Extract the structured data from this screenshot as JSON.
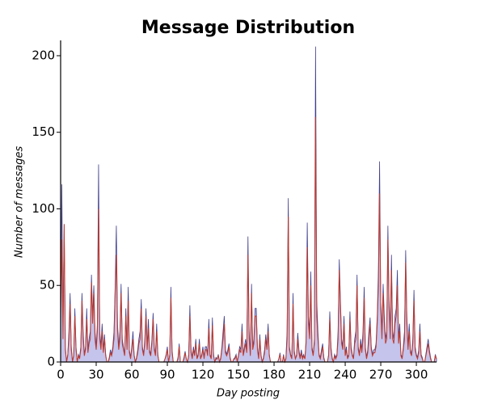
{
  "chart_data": {
    "type": "area",
    "title": "Message Distribution",
    "xlabel": "Day posting",
    "ylabel": "Number of messages",
    "x": [
      0,
      1,
      2,
      3,
      4,
      5,
      6,
      7,
      8,
      9,
      10,
      11,
      12,
      13,
      14,
      15,
      16,
      17,
      18,
      19,
      20,
      21,
      22,
      23,
      24,
      25,
      26,
      27,
      28,
      29,
      30,
      31,
      32,
      33,
      34,
      35,
      36,
      37,
      38,
      39,
      40,
      41,
      42,
      43,
      44,
      45,
      46,
      47,
      48,
      49,
      50,
      51,
      52,
      53,
      54,
      55,
      56,
      57,
      58,
      59,
      60,
      61,
      62,
      63,
      64,
      65,
      66,
      67,
      68,
      69,
      70,
      71,
      72,
      73,
      74,
      75,
      76,
      77,
      78,
      79,
      80,
      81,
      82,
      83,
      84,
      85,
      86,
      87,
      88,
      89,
      90,
      91,
      92,
      93,
      94,
      95,
      96,
      97,
      98,
      99,
      100,
      101,
      102,
      103,
      104,
      105,
      106,
      107,
      108,
      109,
      110,
      111,
      112,
      113,
      114,
      115,
      116,
      117,
      118,
      119,
      120,
      121,
      122,
      123,
      124,
      125,
      126,
      127,
      128,
      129,
      130,
      131,
      132,
      133,
      134,
      135,
      136,
      137,
      138,
      139,
      140,
      141,
      142,
      143,
      144,
      145,
      146,
      147,
      148,
      149,
      150,
      151,
      152,
      153,
      154,
      155,
      156,
      157,
      158,
      159,
      160,
      161,
      162,
      163,
      164,
      165,
      166,
      167,
      168,
      169,
      170,
      171,
      172,
      173,
      174,
      175,
      176,
      177,
      178,
      179,
      180,
      181,
      182,
      183,
      184,
      185,
      186,
      187,
      188,
      189,
      190,
      191,
      192,
      193,
      194,
      195,
      196,
      197,
      198,
      199,
      200,
      201,
      202,
      203,
      204,
      205,
      206,
      207,
      208,
      209,
      210,
      211,
      212,
      213,
      214,
      215,
      216,
      217,
      218,
      219,
      220,
      221,
      222,
      223,
      224,
      225,
      226,
      227,
      228,
      229,
      230,
      231,
      232,
      233,
      234,
      235,
      236,
      237,
      238,
      239,
      240,
      241,
      242,
      243,
      244,
      245,
      246,
      247,
      248,
      249,
      250,
      251,
      252,
      253,
      254,
      255,
      256,
      257,
      258,
      259,
      260,
      261,
      262,
      263,
      264,
      265,
      266,
      267,
      268,
      269,
      270,
      271,
      272,
      273,
      274,
      275,
      276,
      277,
      278,
      279,
      280,
      281,
      282,
      283,
      284,
      285,
      286,
      287,
      288,
      289,
      290,
      291,
      292,
      293,
      294,
      295,
      296,
      297,
      298,
      299,
      300,
      301,
      302,
      303,
      304,
      305,
      306,
      307,
      308,
      309,
      310,
      311,
      312,
      313,
      314,
      315,
      316,
      317
    ],
    "series": [
      {
        "color": "#3f3f8f",
        "fill": "#c4c4ec",
        "values": [
          30,
          116,
          20,
          90,
          10,
          0,
          5,
          20,
          45,
          10,
          0,
          5,
          35,
          10,
          0,
          5,
          3,
          10,
          45,
          20,
          5,
          10,
          35,
          8,
          15,
          20,
          57,
          30,
          50,
          20,
          10,
          25,
          129,
          20,
          10,
          25,
          8,
          18,
          5,
          0,
          0,
          3,
          8,
          5,
          10,
          20,
          50,
          89,
          25,
          10,
          20,
          51,
          15,
          10,
          5,
          35,
          10,
          49,
          8,
          3,
          10,
          20,
          5,
          0,
          3,
          8,
          15,
          20,
          41,
          10,
          5,
          15,
          35,
          10,
          28,
          8,
          5,
          15,
          32,
          10,
          5,
          25,
          5,
          0,
          0,
          0,
          0,
          0,
          2,
          5,
          10,
          0,
          5,
          49,
          8,
          0,
          0,
          0,
          0,
          3,
          12,
          0,
          0,
          0,
          3,
          7,
          2,
          0,
          5,
          37,
          8,
          3,
          10,
          5,
          15,
          3,
          5,
          15,
          2,
          5,
          10,
          3,
          10,
          10,
          5,
          28,
          5,
          3,
          29,
          5,
          0,
          3,
          2,
          5,
          0,
          3,
          10,
          20,
          30,
          8,
          5,
          8,
          12,
          3,
          0,
          0,
          2,
          3,
          5,
          0,
          5,
          10,
          8,
          25,
          5,
          10,
          15,
          8,
          82,
          20,
          5,
          51,
          10,
          15,
          35,
          35,
          10,
          3,
          18,
          5,
          0,
          3,
          8,
          18,
          10,
          25,
          5,
          0,
          0,
          0,
          0,
          0,
          0,
          0,
          2,
          6,
          0,
          0,
          5,
          0,
          3,
          20,
          107,
          10,
          5,
          3,
          45,
          8,
          2,
          5,
          19,
          8,
          3,
          8,
          3,
          5,
          2,
          15,
          91,
          30,
          20,
          59,
          10,
          5,
          15,
          206,
          40,
          20,
          5,
          3,
          8,
          12,
          3,
          0,
          0,
          0,
          5,
          33,
          10,
          3,
          0,
          5,
          3,
          5,
          20,
          67,
          40,
          15,
          10,
          30,
          5,
          10,
          3,
          5,
          33,
          10,
          5,
          3,
          15,
          20,
          57,
          10,
          5,
          15,
          8,
          20,
          49,
          10,
          3,
          8,
          20,
          29,
          10,
          5,
          8,
          8,
          12,
          30,
          60,
          131,
          40,
          20,
          51,
          30,
          15,
          20,
          89,
          40,
          20,
          70,
          20,
          15,
          30,
          35,
          60,
          15,
          25,
          5,
          3,
          10,
          20,
          73,
          30,
          10,
          25,
          8,
          5,
          15,
          47,
          10,
          5,
          3,
          8,
          25,
          5,
          3,
          0,
          0,
          5,
          10,
          15,
          8,
          3,
          0,
          0,
          0,
          5,
          2
        ]
      },
      {
        "color": "#c0392b",
        "values": [
          25,
          80,
          15,
          90,
          8,
          0,
          4,
          15,
          38,
          8,
          0,
          4,
          30,
          8,
          0,
          4,
          2,
          8,
          40,
          15,
          4,
          8,
          28,
          6,
          12,
          15,
          52,
          25,
          45,
          15,
          8,
          20,
          100,
          15,
          8,
          20,
          6,
          15,
          4,
          0,
          0,
          2,
          6,
          4,
          8,
          15,
          45,
          70,
          20,
          8,
          15,
          45,
          12,
          8,
          4,
          30,
          8,
          40,
          6,
          2,
          8,
          15,
          4,
          0,
          2,
          6,
          12,
          15,
          35,
          8,
          4,
          12,
          30,
          8,
          22,
          6,
          4,
          12,
          28,
          8,
          4,
          20,
          4,
          0,
          0,
          0,
          0,
          0,
          2,
          4,
          8,
          0,
          4,
          42,
          6,
          0,
          0,
          0,
          0,
          2,
          10,
          0,
          0,
          0,
          2,
          6,
          2,
          0,
          4,
          30,
          6,
          2,
          8,
          4,
          12,
          2,
          4,
          12,
          2,
          4,
          8,
          2,
          8,
          8,
          4,
          22,
          4,
          2,
          24,
          4,
          0,
          2,
          2,
          4,
          0,
          2,
          8,
          15,
          25,
          6,
          4,
          6,
          10,
          2,
          0,
          0,
          2,
          2,
          4,
          0,
          4,
          8,
          6,
          20,
          4,
          8,
          12,
          6,
          70,
          15,
          4,
          45,
          8,
          12,
          30,
          30,
          8,
          2,
          15,
          4,
          0,
          2,
          6,
          15,
          8,
          20,
          4,
          0,
          0,
          0,
          0,
          0,
          0,
          0,
          2,
          5,
          0,
          0,
          4,
          0,
          2,
          15,
          95,
          8,
          4,
          2,
          38,
          6,
          2,
          4,
          15,
          6,
          2,
          6,
          2,
          4,
          2,
          12,
          75,
          25,
          15,
          50,
          8,
          4,
          12,
          160,
          30,
          15,
          4,
          2,
          6,
          10,
          2,
          0,
          0,
          0,
          4,
          28,
          8,
          2,
          0,
          4,
          2,
          4,
          15,
          60,
          35,
          12,
          8,
          25,
          4,
          8,
          2,
          4,
          28,
          8,
          4,
          2,
          12,
          15,
          50,
          8,
          4,
          12,
          6,
          15,
          42,
          8,
          2,
          6,
          15,
          25,
          8,
          4,
          6,
          6,
          10,
          25,
          50,
          110,
          35,
          15,
          45,
          25,
          12,
          15,
          80,
          35,
          15,
          60,
          15,
          12,
          25,
          30,
          50,
          12,
          20,
          4,
          2,
          8,
          15,
          65,
          25,
          8,
          20,
          6,
          4,
          12,
          40,
          8,
          4,
          2,
          6,
          20,
          4,
          2,
          0,
          0,
          4,
          8,
          12,
          6,
          2,
          0,
          0,
          0,
          4,
          2
        ]
      }
    ],
    "xlim": [
      0,
      317
    ],
    "ylim": [
      0,
      210
    ],
    "xticks": [
      0,
      30,
      60,
      90,
      120,
      150,
      180,
      210,
      240,
      270,
      300
    ],
    "yticks": [
      0,
      50,
      100,
      150,
      200
    ],
    "grid": false
  }
}
